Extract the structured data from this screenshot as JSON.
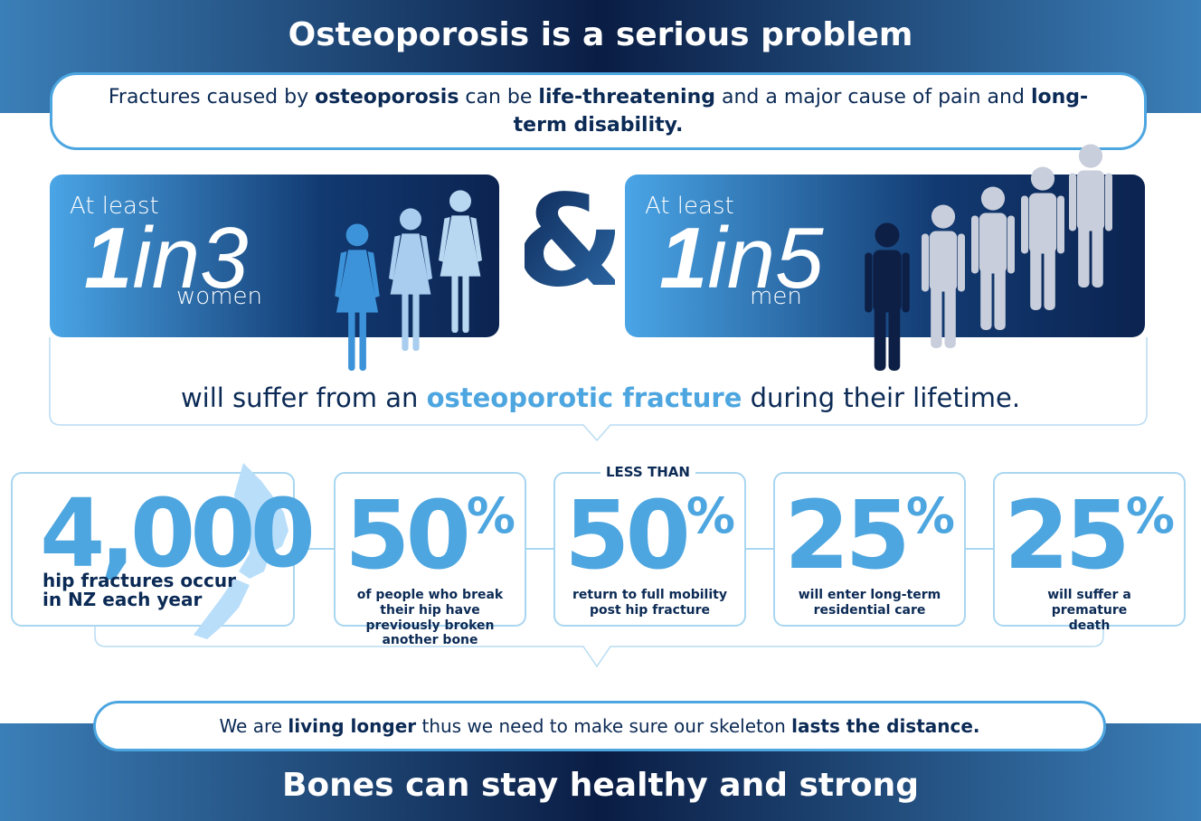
{
  "header": {
    "title": "Osteoporosis is a serious problem"
  },
  "intro": {
    "parts": [
      "Fractures caused by ",
      "osteoporosis",
      " can be ",
      "life-threatening",
      " and a major cause of pain and ",
      "long-term disability."
    ]
  },
  "women": {
    "lead": "At least",
    "one": "1",
    "ratio": "in3",
    "group": "women"
  },
  "ampersand": "&",
  "men": {
    "lead": "At least",
    "one": "1",
    "ratio": "in5",
    "group": "men"
  },
  "summary": {
    "parts": [
      "will suffer from an ",
      "osteoporotic fracture",
      " during their lifetime."
    ]
  },
  "cards": [
    {
      "number": "4,000",
      "text": "hip fractures occur in NZ each year"
    },
    {
      "number": "50",
      "unit": "%",
      "text": "of people who break their hip have previously broken another bone"
    },
    {
      "label": "LESS THAN",
      "number": "50",
      "unit": "%",
      "text": "return to full mobility post hip fracture"
    },
    {
      "number": "25",
      "unit": "%",
      "text": "will enter long-term residential care"
    },
    {
      "number": "25",
      "unit": "%",
      "text": "will suffer a premature death"
    }
  ],
  "footer": {
    "parts": [
      "We are ",
      "living longer",
      " thus we need to make sure our skeleton ",
      "lasts the distance."
    ],
    "title": "Bones can stay healthy and strong"
  }
}
